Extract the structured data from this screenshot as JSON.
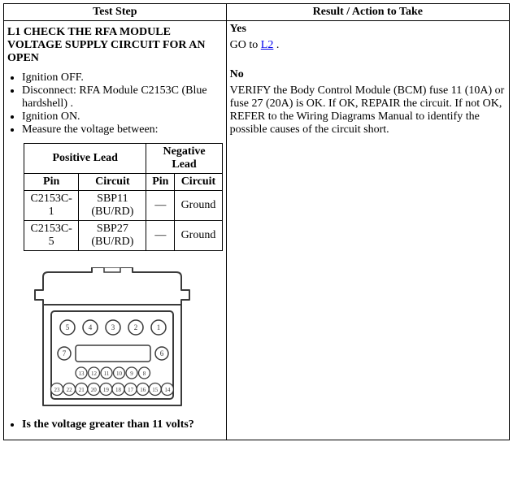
{
  "header": {
    "col1": "Test Step",
    "col2": "Result / Action to Take"
  },
  "step": {
    "id": "L1",
    "title": "L1 CHECK THE RFA MODULE VOLTAGE SUPPLY CIRCUIT FOR AN OPEN",
    "instructions": [
      "Ignition OFF.",
      "Disconnect: RFA Module C2153C (Blue hardshell) .",
      "Ignition ON.",
      "Measure the voltage between:"
    ],
    "question": "Is the voltage greater than 11 volts?"
  },
  "leads_table": {
    "pos_header": "Positive Lead",
    "neg_header": "Negative Lead",
    "pin_label": "Pin",
    "circuit_label": "Circuit",
    "rows": [
      {
        "pos_pin": "C2153C-1",
        "pos_circuit": "SBP11 (BU/RD)",
        "neg_pin": "—",
        "neg_circuit": "Ground"
      },
      {
        "pos_pin": "C2153C-5",
        "pos_circuit": "SBP27 (BU/RD)",
        "neg_pin": "—",
        "neg_circuit": "Ground"
      }
    ]
  },
  "result": {
    "yes_label": "Yes",
    "yes_text_prefix": "GO to ",
    "yes_link": "L2",
    "yes_text_suffix": " .",
    "no_label": "No",
    "no_text": "VERIFY the Body Control Module (BCM) fuse 11 (10A) or fuse 27 (20A) is OK. If OK, REPAIR the circuit. If not OK, REFER to the Wiring Diagrams Manual to identify the possible causes of the circuit short."
  },
  "connector": {
    "top_row": [
      "5",
      "4",
      "3",
      "2",
      "1"
    ],
    "mid_left": "7",
    "mid_right": "6",
    "small_row": [
      "13",
      "12",
      "11",
      "10",
      "9",
      "8"
    ],
    "bottom_row": [
      "23",
      "22",
      "21",
      "20",
      "19",
      "18",
      "17",
      "16",
      "15",
      "14"
    ],
    "stroke_color": "#3a3a3a",
    "fill_color": "#ffffff",
    "text_color": "#3a3a3a"
  },
  "colors": {
    "border": "#000000",
    "link": "#0000ee",
    "bg": "#ffffff",
    "text": "#000000"
  }
}
